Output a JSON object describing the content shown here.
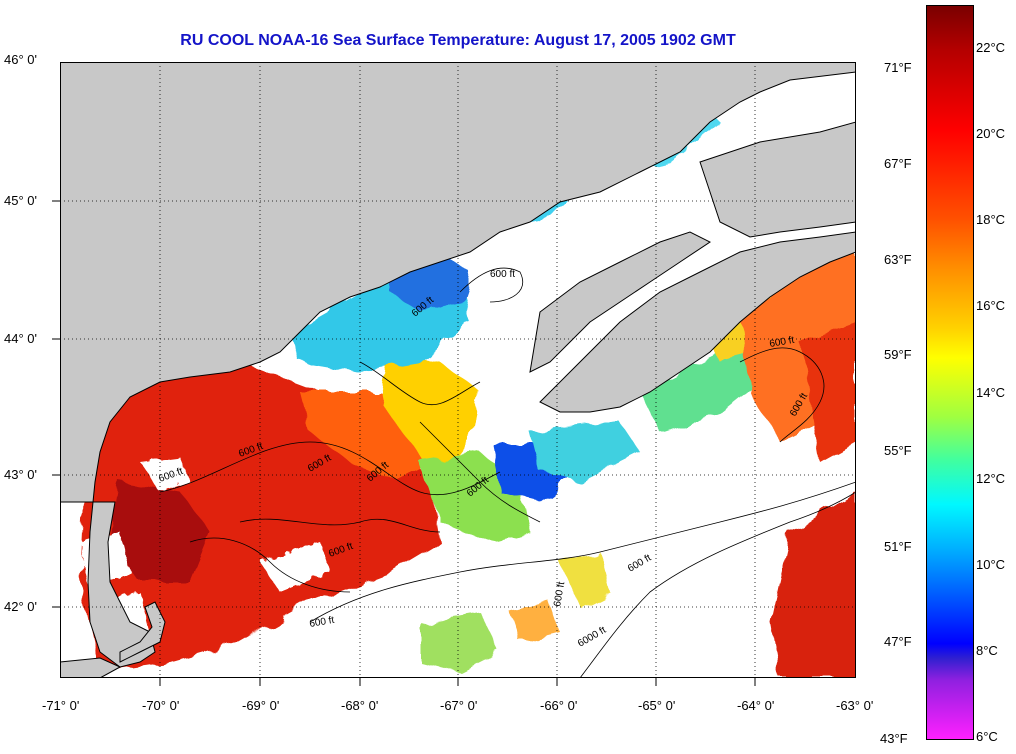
{
  "title": "RU COOL  NOAA-16  Sea Surface Temperature:  August 17, 2005 1902 GMT",
  "axes": {
    "lat_labels": [
      "46° 0'",
      "45° 0'",
      "44° 0'",
      "43° 0'",
      "42° 0'"
    ],
    "lon_labels": [
      "-71° 0'",
      "-70° 0'",
      "-69° 0'",
      "-68° 0'",
      "-67° 0'",
      "-66° 0'",
      "-65° 0'",
      "-64° 0'",
      "-63° 0'"
    ],
    "lat_range": [
      41.5,
      46.0
    ],
    "lon_range": [
      -71.0,
      -63.0
    ]
  },
  "contours": {
    "label_600": "600 ft",
    "label_6000": "6000 ft"
  },
  "colorbar": {
    "celsius_labels": [
      "22°C",
      "20°C",
      "18°C",
      "16°C",
      "14°C",
      "12°C",
      "10°C",
      "8°C",
      "6°C"
    ],
    "fahrenheit_labels": [
      "71°F",
      "67°F",
      "63°F",
      "59°F",
      "55°F",
      "51°F",
      "47°F",
      "43°F"
    ]
  },
  "colors": {
    "land": "#c8c8c8",
    "title": "#1414c8",
    "no_data": "#ffffff"
  }
}
